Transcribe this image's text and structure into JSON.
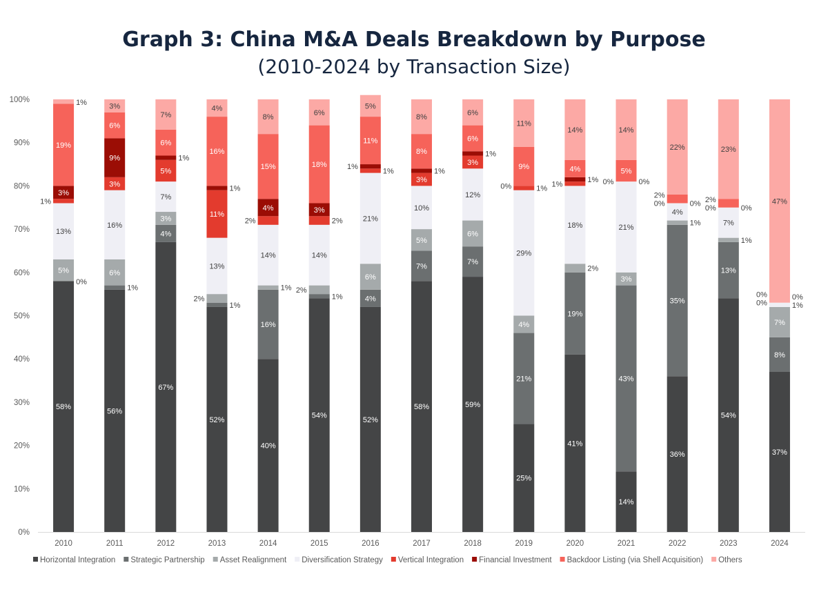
{
  "chart_data": {
    "type": "bar",
    "stacked": true,
    "title": "Graph 3: China M&A Deals Breakdown by Purpose",
    "subtitle": "(2010-2024 by Transaction Size)",
    "xlabel": "",
    "ylabel": "",
    "ylim": [
      0,
      100
    ],
    "y_ticks": [
      "0%",
      "10%",
      "20%",
      "30%",
      "40%",
      "50%",
      "60%",
      "70%",
      "80%",
      "90%",
      "100%"
    ],
    "grid": false,
    "legend": "bottom",
    "categories": [
      "2010",
      "2011",
      "2012",
      "2013",
      "2014",
      "2015",
      "2016",
      "2017",
      "2018",
      "2019",
      "2020",
      "2021",
      "2022",
      "2023",
      "2024"
    ],
    "series": [
      {
        "name": "Horizontal Integration",
        "color": "#444546",
        "label_color": "#ffffff",
        "values": [
          58,
          56,
          67,
          52,
          40,
          54,
          52,
          58,
          59,
          25,
          41,
          14,
          36,
          54,
          37
        ]
      },
      {
        "name": "Strategic Partnership",
        "color": "#6b6f70",
        "label_color": "#ffffff",
        "values": [
          0,
          1,
          4,
          1,
          16,
          1,
          4,
          7,
          7,
          21,
          19,
          43,
          35,
          13,
          8
        ]
      },
      {
        "name": "Asset Realignment",
        "color": "#a5aaab",
        "label_color": "#ffffff",
        "values": [
          5,
          6,
          3,
          2,
          1,
          2,
          6,
          5,
          6,
          4,
          2,
          3,
          1,
          1,
          7
        ]
      },
      {
        "name": "Diversification Strategy",
        "color": "#efeff5",
        "label_color": "#404040",
        "values": [
          13,
          16,
          7,
          13,
          14,
          14,
          21,
          10,
          12,
          29,
          18,
          21,
          4,
          7,
          1
        ]
      },
      {
        "name": "Vertical Integration",
        "color": "#e33b2e",
        "label_color": "#ffffff",
        "values": [
          1,
          3,
          5,
          11,
          2,
          2,
          1,
          3,
          3,
          1,
          1,
          0,
          0,
          0,
          0
        ]
      },
      {
        "name": "Financial Investment",
        "color": "#9b0d05",
        "label_color": "#ffffff",
        "values": [
          3,
          9,
          1,
          1,
          4,
          3,
          1,
          1,
          1,
          0,
          1,
          0,
          0,
          0,
          0
        ]
      },
      {
        "name": "Backdoor Listing (via Shell Acquisition)",
        "color": "#f6635a",
        "label_color": "#ffffff",
        "values": [
          19,
          6,
          6,
          16,
          15,
          18,
          11,
          8,
          6,
          9,
          4,
          5,
          2,
          2,
          0
        ]
      },
      {
        "name": "Others",
        "color": "#fca9a5",
        "label_color": "#404040",
        "values": [
          1,
          3,
          7,
          4,
          8,
          6,
          5,
          8,
          6,
          11,
          14,
          14,
          22,
          23,
          47
        ]
      }
    ]
  }
}
